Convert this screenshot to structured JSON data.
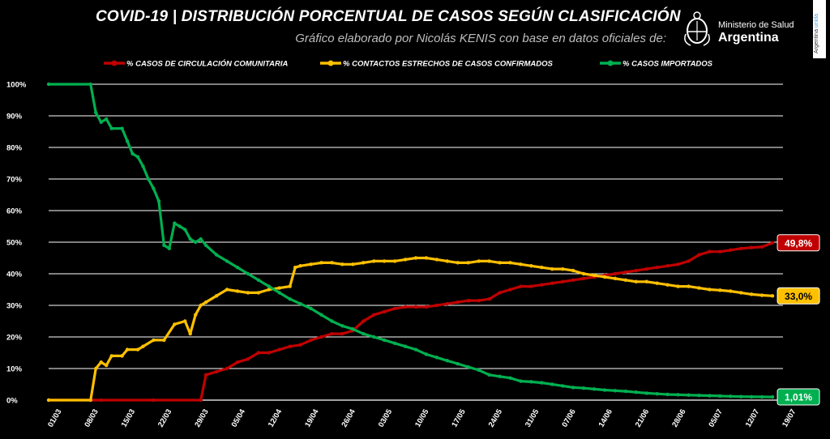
{
  "header": {
    "title": "COVID-19  |  DISTRIBUCIÓN PORCENTUAL DE CASOS SEGÚN CLASIFICACIÓN",
    "subtitle": "Gráfico elaborado por Nicolás KENIS con base en datos oficiales de:"
  },
  "logo": {
    "ministry": "Ministerio de Salud",
    "country": "Argentina",
    "side_tag_prefix": "Argentina ",
    "side_tag_suffix": "unida"
  },
  "chart_data": {
    "type": "line",
    "title": "COVID-19  |  DISTRIBUCIÓN PORCENTUAL DE CASOS SEGÚN CLASIFICACIÓN",
    "xlabel": "",
    "ylabel": "",
    "ylim": [
      0,
      100
    ],
    "y_ticks": [
      "0%",
      "10%",
      "20%",
      "30%",
      "40%",
      "50%",
      "60%",
      "70%",
      "80%",
      "90%",
      "100%"
    ],
    "x_ticks": [
      "01/03",
      "08/03",
      "15/03",
      "22/03",
      "29/03",
      "05/04",
      "12/04",
      "19/04",
      "26/04",
      "03/05",
      "10/05",
      "17/05",
      "24/05",
      "31/05",
      "07/06",
      "14/06",
      "21/06",
      "28/06",
      "05/07",
      "12/07",
      "19/07"
    ],
    "x_start": "01/03",
    "x_range_days": [
      0,
      140
    ],
    "grid": true,
    "legend_position": "top",
    "series": [
      {
        "name": "% CASOS DE CIRCULACIÓN COMUNITARIA",
        "color": "#c00000",
        "end_label": "49,8%",
        "points": [
          [
            0,
            0
          ],
          [
            10,
            0
          ],
          [
            20,
            0
          ],
          [
            29,
            0
          ],
          [
            30,
            8
          ],
          [
            32,
            9
          ],
          [
            34,
            10
          ],
          [
            36,
            12
          ],
          [
            38,
            13
          ],
          [
            40,
            15
          ],
          [
            42,
            15
          ],
          [
            44,
            16
          ],
          [
            46,
            17
          ],
          [
            48,
            17.5
          ],
          [
            50,
            19
          ],
          [
            52,
            20
          ],
          [
            54,
            21
          ],
          [
            56,
            21
          ],
          [
            58,
            22
          ],
          [
            60,
            25
          ],
          [
            62,
            27
          ],
          [
            64,
            28
          ],
          [
            66,
            29
          ],
          [
            68,
            29.5
          ],
          [
            70,
            29.5
          ],
          [
            72,
            29.5
          ],
          [
            74,
            30
          ],
          [
            76,
            30.5
          ],
          [
            78,
            31
          ],
          [
            80,
            31.5
          ],
          [
            82,
            31.5
          ],
          [
            84,
            32
          ],
          [
            86,
            34
          ],
          [
            88,
            35
          ],
          [
            90,
            36
          ],
          [
            92,
            36
          ],
          [
            94,
            36.5
          ],
          [
            96,
            37
          ],
          [
            98,
            37.5
          ],
          [
            100,
            38
          ],
          [
            102,
            38.5
          ],
          [
            104,
            39
          ],
          [
            106,
            39.5
          ],
          [
            108,
            40
          ],
          [
            110,
            40.5
          ],
          [
            112,
            41
          ],
          [
            114,
            41.5
          ],
          [
            116,
            42
          ],
          [
            118,
            42.5
          ],
          [
            120,
            43
          ],
          [
            122,
            44
          ],
          [
            124,
            46
          ],
          [
            126,
            47
          ],
          [
            128,
            47
          ],
          [
            130,
            47.5
          ],
          [
            132,
            48
          ],
          [
            134,
            48.3
          ],
          [
            136,
            48.5
          ],
          [
            138,
            49.8
          ]
        ]
      },
      {
        "name": "% CONTACTOS ESTRECHOS DE CASOS CONFIRMADOS",
        "color": "#ffc000",
        "end_label": "33,0%",
        "points": [
          [
            0,
            0
          ],
          [
            8,
            0
          ],
          [
            9,
            10
          ],
          [
            10,
            12
          ],
          [
            11,
            11
          ],
          [
            12,
            14
          ],
          [
            14,
            14
          ],
          [
            15,
            16
          ],
          [
            17,
            16
          ],
          [
            18,
            17
          ],
          [
            20,
            19
          ],
          [
            22,
            19
          ],
          [
            24,
            24
          ],
          [
            26,
            25
          ],
          [
            27,
            21
          ],
          [
            28,
            27
          ],
          [
            29,
            30
          ],
          [
            30,
            31
          ],
          [
            32,
            33
          ],
          [
            34,
            35
          ],
          [
            36,
            34.5
          ],
          [
            38,
            34
          ],
          [
            40,
            34
          ],
          [
            42,
            35
          ],
          [
            44,
            35.5
          ],
          [
            46,
            36
          ],
          [
            47,
            42
          ],
          [
            48,
            42.5
          ],
          [
            50,
            43
          ],
          [
            52,
            43.5
          ],
          [
            54,
            43.5
          ],
          [
            56,
            43
          ],
          [
            58,
            43
          ],
          [
            60,
            43.5
          ],
          [
            62,
            44
          ],
          [
            64,
            44
          ],
          [
            66,
            44
          ],
          [
            68,
            44.5
          ],
          [
            70,
            45
          ],
          [
            72,
            45
          ],
          [
            74,
            44.5
          ],
          [
            76,
            44
          ],
          [
            78,
            43.5
          ],
          [
            80,
            43.5
          ],
          [
            82,
            44
          ],
          [
            84,
            44
          ],
          [
            86,
            43.5
          ],
          [
            88,
            43.5
          ],
          [
            90,
            43
          ],
          [
            92,
            42.5
          ],
          [
            94,
            42
          ],
          [
            96,
            41.5
          ],
          [
            98,
            41.5
          ],
          [
            100,
            41
          ],
          [
            102,
            40
          ],
          [
            104,
            39.5
          ],
          [
            106,
            39
          ],
          [
            108,
            38.5
          ],
          [
            110,
            38
          ],
          [
            112,
            37.5
          ],
          [
            114,
            37.5
          ],
          [
            116,
            37
          ],
          [
            118,
            36.5
          ],
          [
            120,
            36
          ],
          [
            122,
            36
          ],
          [
            124,
            35.5
          ],
          [
            126,
            35
          ],
          [
            128,
            34.8
          ],
          [
            130,
            34.5
          ],
          [
            132,
            34
          ],
          [
            134,
            33.5
          ],
          [
            136,
            33.2
          ],
          [
            138,
            33
          ]
        ]
      },
      {
        "name": "% CASOS IMPORTADOS",
        "color": "#00b050",
        "end_label": "1,01%",
        "points": [
          [
            0,
            100
          ],
          [
            8,
            100
          ],
          [
            9,
            91
          ],
          [
            10,
            88
          ],
          [
            11,
            89
          ],
          [
            12,
            86
          ],
          [
            14,
            86
          ],
          [
            15,
            82
          ],
          [
            16,
            78
          ],
          [
            17,
            77
          ],
          [
            18,
            74
          ],
          [
            19,
            70
          ],
          [
            20,
            67
          ],
          [
            21,
            63
          ],
          [
            22,
            49
          ],
          [
            23,
            48
          ],
          [
            24,
            56
          ],
          [
            25,
            55
          ],
          [
            26,
            54
          ],
          [
            27,
            51
          ],
          [
            28,
            50
          ],
          [
            29,
            51
          ],
          [
            30,
            49
          ],
          [
            32,
            46
          ],
          [
            34,
            44
          ],
          [
            36,
            42
          ],
          [
            38,
            40
          ],
          [
            40,
            38
          ],
          [
            42,
            36
          ],
          [
            44,
            34
          ],
          [
            46,
            32
          ],
          [
            48,
            30.5
          ],
          [
            50,
            29
          ],
          [
            52,
            27
          ],
          [
            54,
            25
          ],
          [
            56,
            23.5
          ],
          [
            58,
            22.5
          ],
          [
            60,
            21
          ],
          [
            62,
            20
          ],
          [
            64,
            19
          ],
          [
            66,
            18
          ],
          [
            68,
            17
          ],
          [
            70,
            16
          ],
          [
            72,
            14.5
          ],
          [
            74,
            13.5
          ],
          [
            76,
            12.5
          ],
          [
            78,
            11.5
          ],
          [
            80,
            10.5
          ],
          [
            82,
            9.5
          ],
          [
            84,
            8
          ],
          [
            86,
            7.5
          ],
          [
            88,
            7
          ],
          [
            90,
            6
          ],
          [
            92,
            5.8
          ],
          [
            94,
            5.5
          ],
          [
            96,
            5
          ],
          [
            98,
            4.5
          ],
          [
            100,
            4
          ],
          [
            102,
            3.8
          ],
          [
            104,
            3.5
          ],
          [
            106,
            3.2
          ],
          [
            108,
            3
          ],
          [
            110,
            2.8
          ],
          [
            112,
            2.5
          ],
          [
            114,
            2.2
          ],
          [
            116,
            2
          ],
          [
            118,
            1.8
          ],
          [
            120,
            1.7
          ],
          [
            122,
            1.6
          ],
          [
            124,
            1.5
          ],
          [
            126,
            1.4
          ],
          [
            128,
            1.3
          ],
          [
            130,
            1.2
          ],
          [
            132,
            1.1
          ],
          [
            134,
            1.05
          ],
          [
            136,
            1.02
          ],
          [
            138,
            1.01
          ]
        ]
      }
    ]
  }
}
